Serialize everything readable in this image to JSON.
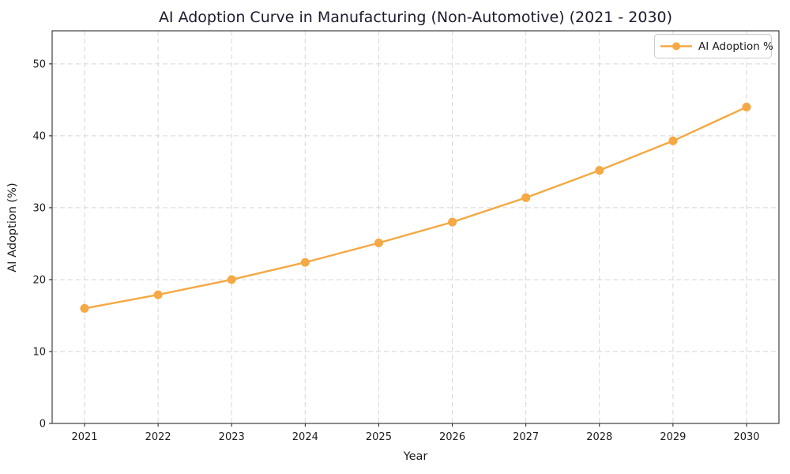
{
  "figure": {
    "title": "AI Adoption Curve in Manufacturing (Non-Automotive) (2021 - 2030)",
    "xlabel": "Year",
    "ylabel": "AI Adoption (%)"
  },
  "legend": {
    "label": "AI Adoption %",
    "position": "upper right"
  },
  "colors": {
    "line": "#F5A843",
    "marker": "#F5A843",
    "grid": "#d6d6d6",
    "spine": "#1a1a1a",
    "title_text": "#1b1b2f",
    "legend_border": "#cccccc",
    "legend_background": "#ffffff"
  },
  "chart_data": {
    "type": "line",
    "title": "AI Adoption Curve in Manufacturing (Non-Automotive) (2021 - 2030)",
    "xlabel": "Year",
    "ylabel": "AI Adoption (%)",
    "categories": [
      "2021",
      "2022",
      "2023",
      "2024",
      "2025",
      "2026",
      "2027",
      "2028",
      "2029",
      "2030"
    ],
    "series": [
      {
        "name": "AI Adoption %",
        "values": [
          16.0,
          17.9,
          20.0,
          22.4,
          25.1,
          28.0,
          31.4,
          35.2,
          39.3,
          44.0
        ]
      }
    ],
    "ylim": [
      0,
      54.6
    ],
    "yticks": [
      0,
      10,
      20,
      30,
      40,
      50
    ],
    "grid": true,
    "grid_style": "dashed",
    "legend_position": "upper right",
    "line_color": "#F5A843",
    "marker": "o"
  }
}
